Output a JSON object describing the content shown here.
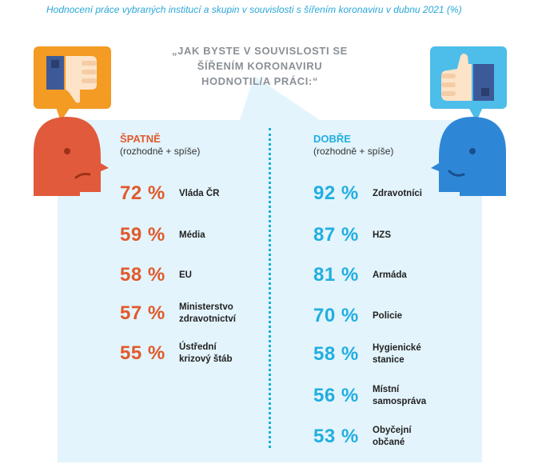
{
  "title": "Hodnocení práce vybraných institucí a skupin v souvislosti s šířením koronaviru v dubnu 2021 (%)",
  "question": "„JAK BYSTE V SOUVISLOSTI SE ŠÍŘENÍM KORONAVIRU HODNOTIL/A PRÁCI:“",
  "colors": {
    "bad": "#e05a2c",
    "good": "#22aee0",
    "panel": "#e3f4fc"
  },
  "bad": {
    "heading": "ŠPATNĚ",
    "sub": "(rozhodně + spíše)",
    "items": [
      {
        "pct": "72 %",
        "label": "Vláda ČR"
      },
      {
        "pct": "59 %",
        "label": "Média"
      },
      {
        "pct": "58 %",
        "label": "EU"
      },
      {
        "pct": "57 %",
        "label": "Ministerstvo\nzdravotnictví"
      },
      {
        "pct": "55 %",
        "label": "Ústřední\nkrizový štáb"
      }
    ]
  },
  "good": {
    "heading": "DOBŘE",
    "sub": "(rozhodně + spíše)",
    "items": [
      {
        "pct": "92 %",
        "label": "Zdravotníci"
      },
      {
        "pct": "87 %",
        "label": "HZS"
      },
      {
        "pct": "81 %",
        "label": "Armáda"
      },
      {
        "pct": "70 %",
        "label": "Policie"
      },
      {
        "pct": "58 %",
        "label": "Hygienické\nstanice"
      },
      {
        "pct": "56 %",
        "label": "Místní\nsamospráva"
      },
      {
        "pct": "53 %",
        "label": "Obyčejní\nobčané"
      }
    ]
  },
  "icons": [
    "thumbs-down-icon",
    "thumbs-up-icon",
    "sad-face-icon",
    "happy-face-icon"
  ]
}
